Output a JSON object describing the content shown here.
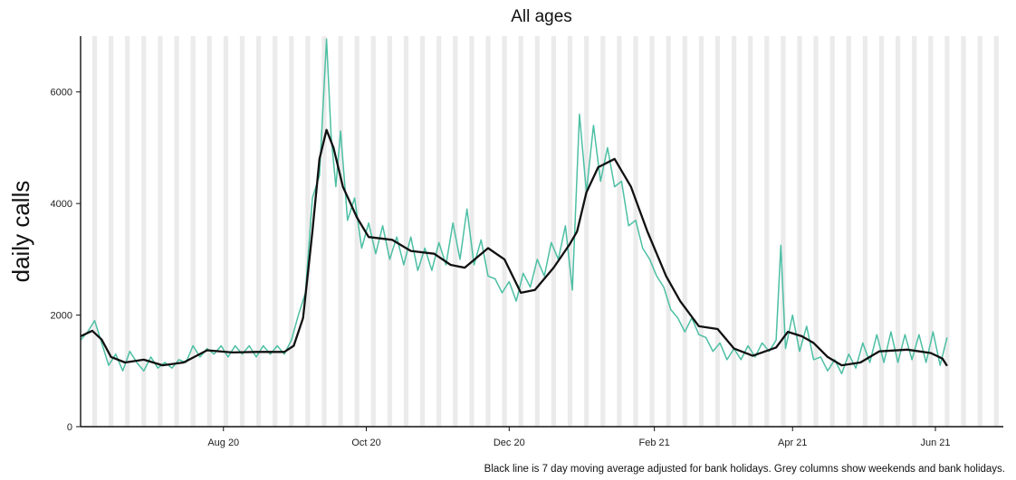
{
  "chart_data": {
    "type": "line",
    "title": "All ages",
    "xlabel": "",
    "ylabel": "daily calls",
    "caption": "Black line is 7 day moving average adjusted for bank holidays. Grey columns show weekends and bank holidays.",
    "x_range": [
      "2020-06-01",
      "2021-06-30"
    ],
    "ylim": [
      0,
      7000
    ],
    "y_ticks": [
      0,
      2000,
      4000,
      6000
    ],
    "x_ticks": [
      {
        "date": "2020-08-01",
        "label": "Aug 20"
      },
      {
        "date": "2020-10-01",
        "label": "Oct 20"
      },
      {
        "date": "2020-12-01",
        "label": "Dec 20"
      },
      {
        "date": "2021-02-01",
        "label": "Feb 21"
      },
      {
        "date": "2021-04-01",
        "label": "Apr 21"
      },
      {
        "date": "2021-06-01",
        "label": "Jun 21"
      }
    ],
    "grid": false,
    "legend": "none",
    "colors": {
      "daily": "#4dbfa4",
      "average": "#111111",
      "weekend": "#ebebeb"
    },
    "series": [
      {
        "key": "daily",
        "points": [
          [
            "2020-06-01",
            1550
          ],
          [
            "2020-06-04",
            1700
          ],
          [
            "2020-06-07",
            1900
          ],
          [
            "2020-06-10",
            1500
          ],
          [
            "2020-06-13",
            1100
          ],
          [
            "2020-06-16",
            1300
          ],
          [
            "2020-06-19",
            1000
          ],
          [
            "2020-06-22",
            1350
          ],
          [
            "2020-06-25",
            1150
          ],
          [
            "2020-06-28",
            1000
          ],
          [
            "2020-07-01",
            1250
          ],
          [
            "2020-07-04",
            1050
          ],
          [
            "2020-07-07",
            1150
          ],
          [
            "2020-07-10",
            1050
          ],
          [
            "2020-07-13",
            1200
          ],
          [
            "2020-07-16",
            1150
          ],
          [
            "2020-07-19",
            1450
          ],
          [
            "2020-07-22",
            1250
          ],
          [
            "2020-07-25",
            1400
          ],
          [
            "2020-07-28",
            1300
          ],
          [
            "2020-07-31",
            1450
          ],
          [
            "2020-08-03",
            1250
          ],
          [
            "2020-08-06",
            1450
          ],
          [
            "2020-08-09",
            1300
          ],
          [
            "2020-08-12",
            1450
          ],
          [
            "2020-08-15",
            1250
          ],
          [
            "2020-08-18",
            1450
          ],
          [
            "2020-08-21",
            1300
          ],
          [
            "2020-08-24",
            1450
          ],
          [
            "2020-08-27",
            1300
          ],
          [
            "2020-08-30",
            1550
          ],
          [
            "2020-09-02",
            2000
          ],
          [
            "2020-09-05",
            2400
          ],
          [
            "2020-09-08",
            4100
          ],
          [
            "2020-09-11",
            4500
          ],
          [
            "2020-09-14",
            6950
          ],
          [
            "2020-09-16",
            5200
          ],
          [
            "2020-09-18",
            4300
          ],
          [
            "2020-09-20",
            5300
          ],
          [
            "2020-09-23",
            3700
          ],
          [
            "2020-09-26",
            4100
          ],
          [
            "2020-09-29",
            3200
          ],
          [
            "2020-10-02",
            3650
          ],
          [
            "2020-10-05",
            3100
          ],
          [
            "2020-10-08",
            3600
          ],
          [
            "2020-10-11",
            3000
          ],
          [
            "2020-10-14",
            3400
          ],
          [
            "2020-10-17",
            2900
          ],
          [
            "2020-10-20",
            3400
          ],
          [
            "2020-10-23",
            2800
          ],
          [
            "2020-10-26",
            3200
          ],
          [
            "2020-10-29",
            2800
          ],
          [
            "2020-11-01",
            3300
          ],
          [
            "2020-11-04",
            2900
          ],
          [
            "2020-11-07",
            3650
          ],
          [
            "2020-11-10",
            3000
          ],
          [
            "2020-11-13",
            3900
          ],
          [
            "2020-11-16",
            2900
          ],
          [
            "2020-11-19",
            3350
          ],
          [
            "2020-11-22",
            2700
          ],
          [
            "2020-11-25",
            2650
          ],
          [
            "2020-11-28",
            2400
          ],
          [
            "2020-12-01",
            2600
          ],
          [
            "2020-12-04",
            2250
          ],
          [
            "2020-12-07",
            2750
          ],
          [
            "2020-12-10",
            2500
          ],
          [
            "2020-12-13",
            3000
          ],
          [
            "2020-12-16",
            2700
          ],
          [
            "2020-12-19",
            3300
          ],
          [
            "2020-12-22",
            3000
          ],
          [
            "2020-12-25",
            3600
          ],
          [
            "2020-12-28",
            2450
          ],
          [
            "2020-12-31",
            5600
          ],
          [
            "2021-01-03",
            4200
          ],
          [
            "2021-01-06",
            5400
          ],
          [
            "2021-01-09",
            4400
          ],
          [
            "2021-01-12",
            5000
          ],
          [
            "2021-01-15",
            4300
          ],
          [
            "2021-01-18",
            4400
          ],
          [
            "2021-01-21",
            3600
          ],
          [
            "2021-01-24",
            3700
          ],
          [
            "2021-01-27",
            3200
          ],
          [
            "2021-01-30",
            3000
          ],
          [
            "2021-02-02",
            2700
          ],
          [
            "2021-02-05",
            2500
          ],
          [
            "2021-02-08",
            2100
          ],
          [
            "2021-02-11",
            1950
          ],
          [
            "2021-02-14",
            1700
          ],
          [
            "2021-02-17",
            1950
          ],
          [
            "2021-02-20",
            1650
          ],
          [
            "2021-02-23",
            1600
          ],
          [
            "2021-02-26",
            1350
          ],
          [
            "2021-03-01",
            1500
          ],
          [
            "2021-03-04",
            1200
          ],
          [
            "2021-03-07",
            1400
          ],
          [
            "2021-03-10",
            1200
          ],
          [
            "2021-03-13",
            1450
          ],
          [
            "2021-03-16",
            1250
          ],
          [
            "2021-03-19",
            1500
          ],
          [
            "2021-03-22",
            1350
          ],
          [
            "2021-03-25",
            1550
          ],
          [
            "2021-03-27",
            3250
          ],
          [
            "2021-03-29",
            1400
          ],
          [
            "2021-04-01",
            2000
          ],
          [
            "2021-04-04",
            1350
          ],
          [
            "2021-04-07",
            1800
          ],
          [
            "2021-04-10",
            1200
          ],
          [
            "2021-04-13",
            1250
          ],
          [
            "2021-04-16",
            1000
          ],
          [
            "2021-04-19",
            1200
          ],
          [
            "2021-04-22",
            950
          ],
          [
            "2021-04-25",
            1300
          ],
          [
            "2021-04-28",
            1050
          ],
          [
            "2021-05-01",
            1500
          ],
          [
            "2021-05-04",
            1150
          ],
          [
            "2021-05-07",
            1650
          ],
          [
            "2021-05-10",
            1150
          ],
          [
            "2021-05-13",
            1700
          ],
          [
            "2021-05-16",
            1150
          ],
          [
            "2021-05-19",
            1650
          ],
          [
            "2021-05-22",
            1200
          ],
          [
            "2021-05-25",
            1650
          ],
          [
            "2021-05-28",
            1150
          ],
          [
            "2021-05-31",
            1700
          ],
          [
            "2021-06-03",
            1100
          ],
          [
            "2021-06-06",
            1600
          ]
        ]
      },
      {
        "key": "average",
        "points": [
          [
            "2020-06-01",
            1620
          ],
          [
            "2020-06-06",
            1720
          ],
          [
            "2020-06-10",
            1560
          ],
          [
            "2020-06-14",
            1250
          ],
          [
            "2020-06-20",
            1150
          ],
          [
            "2020-06-28",
            1200
          ],
          [
            "2020-07-06",
            1100
          ],
          [
            "2020-07-15",
            1150
          ],
          [
            "2020-07-25",
            1370
          ],
          [
            "2020-08-05",
            1330
          ],
          [
            "2020-08-15",
            1340
          ],
          [
            "2020-08-27",
            1340
          ],
          [
            "2020-08-31",
            1450
          ],
          [
            "2020-09-04",
            1950
          ],
          [
            "2020-09-08",
            3500
          ],
          [
            "2020-09-11",
            4800
          ],
          [
            "2020-09-14",
            5320
          ],
          [
            "2020-09-17",
            5000
          ],
          [
            "2020-09-21",
            4300
          ],
          [
            "2020-09-27",
            3750
          ],
          [
            "2020-10-02",
            3400
          ],
          [
            "2020-10-12",
            3350
          ],
          [
            "2020-10-20",
            3150
          ],
          [
            "2020-10-30",
            3100
          ],
          [
            "2020-11-06",
            2900
          ],
          [
            "2020-11-12",
            2850
          ],
          [
            "2020-11-22",
            3200
          ],
          [
            "2020-11-29",
            3000
          ],
          [
            "2020-12-06",
            2400
          ],
          [
            "2020-12-12",
            2450
          ],
          [
            "2020-12-20",
            2850
          ],
          [
            "2020-12-27",
            3280
          ],
          [
            "2020-12-30",
            3500
          ],
          [
            "2021-01-03",
            4200
          ],
          [
            "2021-01-08",
            4650
          ],
          [
            "2021-01-15",
            4800
          ],
          [
            "2021-01-22",
            4300
          ],
          [
            "2021-01-29",
            3500
          ],
          [
            "2021-02-06",
            2700
          ],
          [
            "2021-02-12",
            2250
          ],
          [
            "2021-02-20",
            1800
          ],
          [
            "2021-02-28",
            1750
          ],
          [
            "2021-03-07",
            1400
          ],
          [
            "2021-03-15",
            1270
          ],
          [
            "2021-03-25",
            1420
          ],
          [
            "2021-03-30",
            1700
          ],
          [
            "2021-04-05",
            1620
          ],
          [
            "2021-04-10",
            1500
          ],
          [
            "2021-04-16",
            1250
          ],
          [
            "2021-04-22",
            1100
          ],
          [
            "2021-04-30",
            1150
          ],
          [
            "2021-05-08",
            1350
          ],
          [
            "2021-05-20",
            1380
          ],
          [
            "2021-05-30",
            1320
          ],
          [
            "2021-06-04",
            1220
          ],
          [
            "2021-06-06",
            1090
          ]
        ]
      }
    ]
  }
}
